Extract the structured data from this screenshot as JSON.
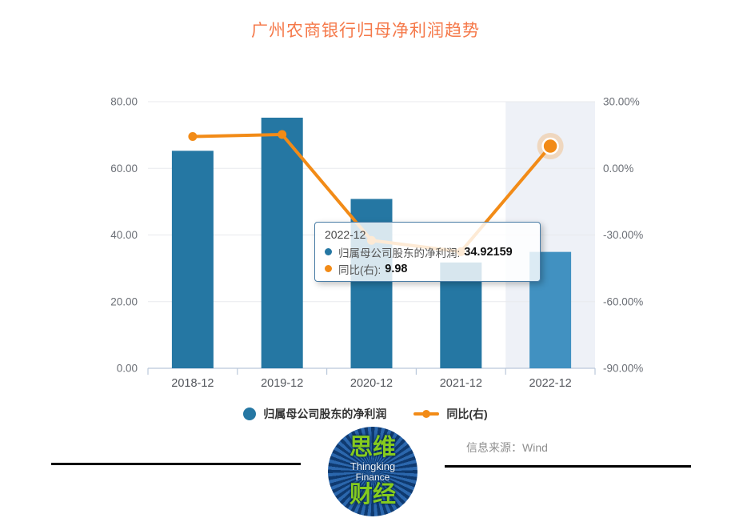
{
  "title": {
    "text": "广州农商银行归母净利润趋势",
    "color": "#f5794a"
  },
  "chart_data": {
    "type": "bar+line",
    "categories": [
      "2018-12",
      "2019-12",
      "2020-12",
      "2021-12",
      "2022-12"
    ],
    "series": [
      {
        "name": "归属母公司股东的净利润",
        "type": "bar",
        "axis": "left",
        "values": [
          65.26,
          75.2,
          50.81,
          31.75,
          34.92159
        ],
        "color": "#2577a3",
        "highlight_color": "#4191c1",
        "highlight_index": 4
      },
      {
        "name": "同比(右)",
        "type": "line",
        "axis": "right",
        "values": [
          14.32,
          15.23,
          -32.43,
          -37.51,
          9.98
        ],
        "color": "#f28b17",
        "emphasis_index": 4
      }
    ],
    "left_axis": {
      "min": 0,
      "max": 80,
      "tick_labels": [
        "80.00",
        "60.00",
        "40.00",
        "20.00",
        "0.00"
      ]
    },
    "right_axis": {
      "min": -90,
      "max": 30,
      "tick_labels": [
        "30.00%",
        "0.00%",
        "-30.00%",
        "-60.00%",
        "-90.00%"
      ]
    },
    "grid": true,
    "legend_position": "bottom",
    "highlight_band_color": "#eef1f7",
    "grid_color": "#e8eaed",
    "axis_color": "#bac8da",
    "y_label_color": "#6b6f76",
    "x_label_color": "#53565c"
  },
  "tooltip": {
    "title": "2022-12",
    "rows": [
      {
        "label": "归属母公司股东的净利润:",
        "value": "34.92159",
        "color": "#2577a3"
      },
      {
        "label": "同比(右):",
        "value": "9.98",
        "color": "#f28b17"
      }
    ]
  },
  "legend": {
    "bar_color": "#2577a3",
    "line_color": "#f28b17"
  },
  "footer": {
    "source": "信息来源：Wind"
  },
  "logo": {
    "top": "思维",
    "en1": "Thingking",
    "en2": "Finance",
    "bottom": "财经"
  }
}
